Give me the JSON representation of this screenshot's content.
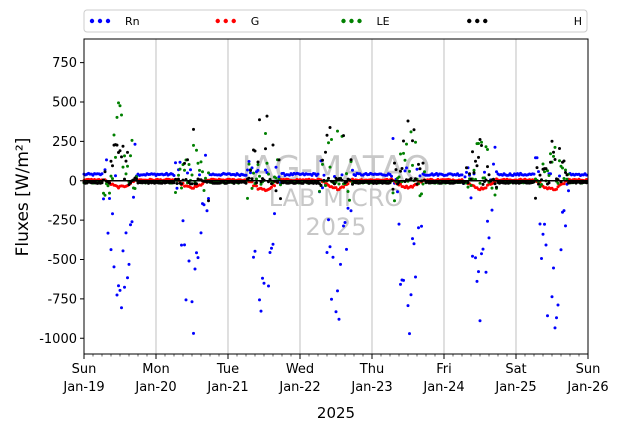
{
  "chart_data": {
    "type": "scatter",
    "ylabel": "Fluxes [W/m²]",
    "xlabel": "2025",
    "ylim": [
      -1100,
      900
    ],
    "yticks": [
      -1000,
      -750,
      -500,
      -250,
      0,
      250,
      500,
      750
    ],
    "xrange_days": [
      19,
      26
    ],
    "xticks": [
      {
        "day": "Sun",
        "date": "Jan-19"
      },
      {
        "day": "Mon",
        "date": "Jan-20"
      },
      {
        "day": "Tue",
        "date": "Jan-21"
      },
      {
        "day": "Wed",
        "date": "Jan-22"
      },
      {
        "day": "Thu",
        "date": "Jan-23"
      },
      {
        "day": "Fri",
        "date": "Jan-24"
      },
      {
        "day": "Sat",
        "date": "Jan-25"
      },
      {
        "day": "Sun",
        "date": "Jan-26"
      }
    ],
    "grid": "x-major",
    "legend_position": "top",
    "watermark": [
      "IAG-MATAO",
      "LAB MICRO",
      "2025"
    ],
    "series": [
      {
        "name": "Rn",
        "color": "#0000ff",
        "night": 40,
        "peak": [
          -680,
          -720,
          -760,
          -700,
          -740,
          -660,
          -720
        ],
        "spread": 0.35
      },
      {
        "name": "G",
        "color": "#ff0000",
        "night": 5,
        "peak": [
          -40,
          -45,
          -60,
          -50,
          -40,
          -50,
          -55
        ],
        "spread": 0.15
      },
      {
        "name": "LE",
        "color": "#008000",
        "night": -10,
        "peak": [
          300,
          140,
          180,
          200,
          200,
          150,
          140
        ],
        "spread": 0.7
      },
      {
        "name": "H",
        "color": "#000000",
        "night": -12,
        "peak": [
          200,
          250,
          300,
          320,
          270,
          180,
          220
        ],
        "spread": 0.45
      }
    ]
  }
}
